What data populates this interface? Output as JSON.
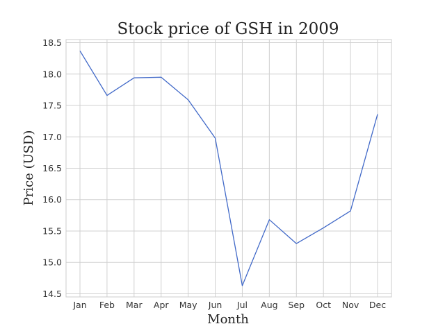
{
  "chart_data": {
    "type": "line",
    "title": "Stock price of GSH in 2009",
    "xlabel": "Month",
    "ylabel": "Price (USD)",
    "categories": [
      "Jan",
      "Feb",
      "Mar",
      "Apr",
      "May",
      "Jun",
      "Jul",
      "Aug",
      "Sep",
      "Oct",
      "Nov",
      "Dec"
    ],
    "series": [
      {
        "values": [
          18.37,
          17.66,
          17.94,
          17.95,
          17.59,
          16.98,
          14.63,
          15.68,
          15.3,
          15.55,
          15.82,
          17.36
        ]
      }
    ],
    "ylim": [
      14.45,
      18.55
    ],
    "yticks": [
      "14.5",
      "15.0",
      "15.5",
      "16.0",
      "16.5",
      "17.0",
      "17.5",
      "18.0",
      "18.5"
    ],
    "grid": true,
    "line_color": "#4169c8"
  }
}
